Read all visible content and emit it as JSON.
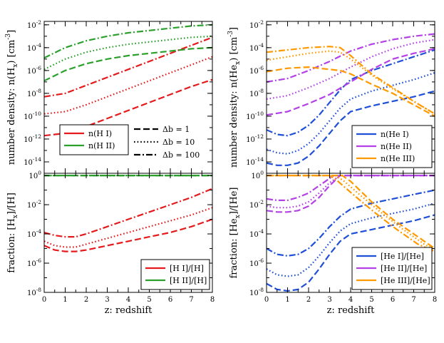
{
  "chart_data": [
    {
      "type": "line",
      "panel": "top-left",
      "ylabel": "number density: n(H_x) [cm^-3]",
      "xlim": [
        0,
        8
      ],
      "ylim_log10": [
        -15,
        -1.7
      ],
      "y_ticks": [
        "10^-14",
        "10^-12",
        "10^-10",
        "10^-8",
        "10^-6",
        "10^-4",
        "10^-2"
      ],
      "legend": [
        {
          "label": "n(H I)",
          "color": "#e41a1c"
        },
        {
          "label": "n(H II)",
          "color": "#2ca02c"
        }
      ],
      "style_legend": [
        {
          "label": "Δb = 1",
          "dash": "dashed"
        },
        {
          "label": "Δb = 10",
          "dash": "dotted"
        },
        {
          "label": "Δb = 100",
          "dash": "dashdot"
        }
      ],
      "series": [
        {
          "name": "n(H I) Δb=1",
          "color": "#e41a1c",
          "dash": "dashed",
          "x": [
            0,
            1,
            2,
            3,
            4,
            5,
            6,
            7,
            8
          ],
          "y": [
            -11.7,
            -11.5,
            -10.9,
            -10.2,
            -9.5,
            -8.8,
            -8.1,
            -7.4,
            -6.8
          ]
        },
        {
          "name": "n(H I) Δb=10",
          "color": "#e41a1c",
          "dash": "dotted",
          "x": [
            0,
            1,
            2,
            3,
            4,
            5,
            6,
            7,
            8
          ],
          "y": [
            -9.8,
            -9.6,
            -9.0,
            -8.3,
            -7.6,
            -6.9,
            -6.2,
            -5.5,
            -4.8
          ]
        },
        {
          "name": "n(H I) Δb=100",
          "color": "#e41a1c",
          "dash": "dashdot",
          "x": [
            0,
            1,
            2,
            3,
            4,
            5,
            6,
            7,
            8
          ],
          "y": [
            -8.3,
            -8.0,
            -7.3,
            -6.6,
            -5.9,
            -5.2,
            -4.5,
            -3.8,
            -3.1
          ]
        },
        {
          "name": "n(H II) Δb=1",
          "color": "#2ca02c",
          "dash": "dashed",
          "x": [
            0,
            1,
            2,
            3,
            4,
            5,
            6,
            7,
            8
          ],
          "y": [
            -6.9,
            -6.0,
            -5.4,
            -5.0,
            -4.7,
            -4.5,
            -4.3,
            -4.1,
            -4.0
          ]
        },
        {
          "name": "n(H II) Δb=10",
          "color": "#2ca02c",
          "dash": "dotted",
          "x": [
            0,
            1,
            2,
            3,
            4,
            5,
            6,
            7,
            8
          ],
          "y": [
            -5.9,
            -5.0,
            -4.4,
            -4.0,
            -3.7,
            -3.5,
            -3.3,
            -3.1,
            -3.0
          ]
        },
        {
          "name": "n(H II) Δb=100",
          "color": "#2ca02c",
          "dash": "dashdot",
          "x": [
            0,
            1,
            2,
            3,
            4,
            5,
            6,
            7,
            8
          ],
          "y": [
            -4.9,
            -4.0,
            -3.4,
            -3.0,
            -2.7,
            -2.5,
            -2.3,
            -2.1,
            -2.0
          ]
        }
      ]
    },
    {
      "type": "line",
      "panel": "top-right",
      "ylabel": "number density: n(He_x) [cm^-3]",
      "xlim": [
        0,
        8
      ],
      "ylim_log10": [
        -15,
        -1.7
      ],
      "y_ticks": [
        "10^-14",
        "10^-12",
        "10^-10",
        "10^-8",
        "10^-6",
        "10^-4",
        "10^-2"
      ],
      "legend": [
        {
          "label": "n(He I)",
          "color": "#1f4fd6"
        },
        {
          "label": "n(He II)",
          "color": "#b341e6"
        },
        {
          "label": "n(He III)",
          "color": "#ff9900"
        }
      ],
      "series": [
        {
          "name": "n(He I) Δb=1",
          "color": "#1f4fd6",
          "dash": "dashed",
          "x": [
            0,
            0.5,
            1,
            1.5,
            2,
            2.5,
            3,
            3.5,
            4,
            5,
            6,
            7,
            8
          ],
          "y": [
            -14.1,
            -14.3,
            -14.3,
            -14.1,
            -13.5,
            -12.6,
            -11.5,
            -10.4,
            -9.6,
            -9.1,
            -8.7,
            -8.3,
            -7.8
          ]
        },
        {
          "name": "n(He I) Δb=10",
          "color": "#1f4fd6",
          "dash": "dotted",
          "x": [
            0,
            0.5,
            1,
            1.5,
            2,
            2.5,
            3,
            3.5,
            4,
            5,
            6,
            7,
            8
          ],
          "y": [
            -12.9,
            -13.2,
            -13.3,
            -13.0,
            -12.4,
            -11.5,
            -10.4,
            -9.3,
            -8.5,
            -7.8,
            -7.3,
            -6.8,
            -6.2
          ]
        },
        {
          "name": "n(He I) Δb=100",
          "color": "#1f4fd6",
          "dash": "dashdot",
          "x": [
            0,
            0.5,
            1,
            1.5,
            2,
            2.5,
            3,
            3.5,
            4,
            5,
            6,
            7,
            8
          ],
          "y": [
            -11.2,
            -11.6,
            -11.7,
            -11.4,
            -10.8,
            -9.9,
            -8.8,
            -7.7,
            -6.8,
            -6.0,
            -5.4,
            -4.8,
            -4.2
          ]
        },
        {
          "name": "n(He II) Δb=1",
          "color": "#b341e6",
          "dash": "dashed",
          "x": [
            0,
            1,
            2,
            3,
            4,
            5,
            6,
            7,
            8
          ],
          "y": [
            -9.9,
            -9.6,
            -8.9,
            -8.1,
            -7.0,
            -5.9,
            -5.0,
            -4.5,
            -4.1
          ]
        },
        {
          "name": "n(He II) Δb=10",
          "color": "#b341e6",
          "dash": "dotted",
          "x": [
            0,
            1,
            2,
            3,
            4,
            5,
            6,
            7,
            8
          ],
          "y": [
            -8.5,
            -8.2,
            -7.5,
            -6.7,
            -5.7,
            -4.8,
            -4.1,
            -3.6,
            -3.3
          ]
        },
        {
          "name": "n(He II) Δb=100",
          "color": "#b341e6",
          "dash": "dashdot",
          "x": [
            0,
            1,
            2,
            3,
            4,
            5,
            6,
            7,
            8
          ],
          "y": [
            -7.0,
            -6.7,
            -6.0,
            -5.2,
            -4.3,
            -3.7,
            -3.3,
            -3.0,
            -2.8
          ]
        },
        {
          "name": "n(He III) Δb=1",
          "color": "#ff9900",
          "dash": "dashed",
          "x": [
            0,
            1,
            2,
            3,
            3.5,
            4,
            5,
            6,
            7,
            8
          ],
          "y": [
            -6.1,
            -5.8,
            -5.7,
            -5.9,
            -6.0,
            -6.3,
            -7.2,
            -8.0,
            -9.0,
            -10.0
          ]
        },
        {
          "name": "n(He III) Δb=10",
          "color": "#ff9900",
          "dash": "dotted",
          "x": [
            0,
            1,
            2,
            3,
            3.5,
            4,
            5,
            6,
            7,
            8
          ],
          "y": [
            -5.1,
            -4.8,
            -4.5,
            -4.3,
            -4.4,
            -5.0,
            -6.4,
            -7.6,
            -8.7,
            -9.8
          ]
        },
        {
          "name": "n(He III) Δb=100",
          "color": "#ff9900",
          "dash": "dashdot",
          "x": [
            0,
            1,
            2,
            3,
            3.5,
            4,
            5,
            6,
            7,
            8
          ],
          "y": [
            -4.4,
            -4.2,
            -4.0,
            -3.9,
            -4.0,
            -4.7,
            -6.3,
            -7.5,
            -8.7,
            -9.8
          ]
        }
      ]
    },
    {
      "type": "line",
      "panel": "bottom-left",
      "xlabel": "z: redshift",
      "ylabel": "fraction: [H_x]/[H]",
      "xlim": [
        0,
        8
      ],
      "ylim_log10": [
        -8,
        0.15
      ],
      "x_ticks": [
        "0",
        "1",
        "2",
        "3",
        "4",
        "5",
        "6",
        "7",
        "8"
      ],
      "y_ticks": [
        "10^-8",
        "10^-6",
        "10^-4",
        "10^-2",
        "10^0"
      ],
      "legend": [
        {
          "label": "[H I]/[H]",
          "color": "#e41a1c"
        },
        {
          "label": "[H II]/[H]",
          "color": "#2ca02c"
        }
      ],
      "series": [
        {
          "name": "[H I]/[H] Δb=1",
          "color": "#e41a1c",
          "dash": "dashed",
          "x": [
            0,
            0.5,
            1,
            1.5,
            2,
            3,
            4,
            5,
            6,
            7,
            8
          ],
          "y": [
            -4.8,
            -5.1,
            -5.2,
            -5.2,
            -5.1,
            -4.8,
            -4.5,
            -4.2,
            -3.9,
            -3.5,
            -3.0
          ]
        },
        {
          "name": "[H I]/[H] Δb=10",
          "color": "#e41a1c",
          "dash": "dotted",
          "x": [
            0,
            0.5,
            1,
            1.5,
            2,
            3,
            4,
            5,
            6,
            7,
            8
          ],
          "y": [
            -4.5,
            -4.8,
            -4.9,
            -4.9,
            -4.7,
            -4.3,
            -3.9,
            -3.5,
            -3.1,
            -2.7,
            -2.2
          ]
        },
        {
          "name": "[H I]/[H] Δb=100",
          "color": "#e41a1c",
          "dash": "dashdot",
          "x": [
            0,
            0.5,
            1,
            1.5,
            2,
            3,
            4,
            5,
            6,
            7,
            8
          ],
          "y": [
            -3.9,
            -4.1,
            -4.2,
            -4.2,
            -4.0,
            -3.5,
            -3.0,
            -2.5,
            -2.0,
            -1.5,
            -0.9
          ]
        },
        {
          "name": "[H II]/[H] Δb=1",
          "color": "#2ca02c",
          "dash": "dashed",
          "x": [
            0,
            8
          ],
          "y": [
            0,
            0
          ]
        },
        {
          "name": "[H II]/[H] Δb=10",
          "color": "#2ca02c",
          "dash": "dotted",
          "x": [
            0,
            8
          ],
          "y": [
            0,
            0
          ]
        },
        {
          "name": "[H II]/[H] Δb=100",
          "color": "#2ca02c",
          "dash": "dashdot",
          "x": [
            0,
            8
          ],
          "y": [
            0,
            0
          ]
        }
      ]
    },
    {
      "type": "line",
      "panel": "bottom-right",
      "xlabel": "z: redshift",
      "ylabel": "fraction: [He_x]/[He]",
      "xlim": [
        0,
        8
      ],
      "ylim_log10": [
        -8,
        0.15
      ],
      "x_ticks": [
        "0",
        "1",
        "2",
        "3",
        "4",
        "5",
        "6",
        "7",
        "8"
      ],
      "y_ticks": [
        "10^-8",
        "10^-6",
        "10^-4",
        "10^-2",
        "10^0"
      ],
      "legend": [
        {
          "label": "[He I]/[He]",
          "color": "#1f4fd6"
        },
        {
          "label": "[He II]/[He]",
          "color": "#b341e6"
        },
        {
          "label": "[He III]/[He]",
          "color": "#ff9900"
        }
      ],
      "series": [
        {
          "name": "[He I]/[He] Δb=1",
          "color": "#1f4fd6",
          "dash": "dashed",
          "x": [
            0,
            0.5,
            1,
            1.5,
            2,
            2.5,
            3,
            3.5,
            4,
            5,
            6,
            7,
            8
          ],
          "y": [
            -7.4,
            -7.8,
            -7.9,
            -7.8,
            -7.3,
            -6.4,
            -5.4,
            -4.5,
            -4.0,
            -3.7,
            -3.4,
            -3.1,
            -2.7
          ]
        },
        {
          "name": "[He I]/[He] Δb=10",
          "color": "#1f4fd6",
          "dash": "dotted",
          "x": [
            0,
            0.5,
            1,
            1.5,
            2,
            2.5,
            3,
            3.5,
            4,
            5,
            6,
            7,
            8
          ],
          "y": [
            -6.4,
            -6.8,
            -6.9,
            -6.8,
            -6.3,
            -5.5,
            -4.6,
            -3.8,
            -3.3,
            -2.9,
            -2.6,
            -2.3,
            -1.9
          ]
        },
        {
          "name": "[He I]/[He] Δb=100",
          "color": "#1f4fd6",
          "dash": "dashdot",
          "x": [
            0,
            0.5,
            1,
            1.5,
            2,
            2.5,
            3,
            3.5,
            4,
            5,
            6,
            7,
            8
          ],
          "y": [
            -5.0,
            -5.4,
            -5.5,
            -5.4,
            -5.0,
            -4.3,
            -3.5,
            -2.8,
            -2.3,
            -1.9,
            -1.6,
            -1.3,
            -1.0
          ]
        },
        {
          "name": "[He II]/[He] Δb=1",
          "color": "#b341e6",
          "dash": "dashed",
          "x": [
            0,
            0.5,
            1,
            1.5,
            2,
            2.5,
            3,
            3.5,
            8
          ],
          "y": [
            -2.4,
            -2.5,
            -2.5,
            -2.4,
            -2.1,
            -1.5,
            -0.7,
            0,
            0
          ]
        },
        {
          "name": "[He II]/[He] Δb=10",
          "color": "#b341e6",
          "dash": "dotted",
          "x": [
            0,
            0.5,
            1,
            1.5,
            2,
            2.5,
            3,
            3.5,
            8
          ],
          "y": [
            -2.1,
            -2.2,
            -2.2,
            -2.1,
            -1.8,
            -1.2,
            -0.5,
            0,
            0
          ]
        },
        {
          "name": "[He II]/[He] Δb=100",
          "color": "#b341e6",
          "dash": "dashdot",
          "x": [
            0,
            0.5,
            1,
            1.5,
            2,
            2.5,
            3,
            3.2,
            8
          ],
          "y": [
            -1.6,
            -1.7,
            -1.7,
            -1.5,
            -1.2,
            -0.7,
            -0.2,
            0,
            0
          ]
        },
        {
          "name": "[He III]/[He] Δb=1",
          "color": "#ff9900",
          "dash": "dashed",
          "x": [
            0,
            3.6,
            4,
            5,
            6,
            7,
            8
          ],
          "y": [
            0,
            0,
            -0.4,
            -1.8,
            -3.0,
            -4.0,
            -5.0
          ]
        },
        {
          "name": "[He III]/[He] Δb=10",
          "color": "#ff9900",
          "dash": "dotted",
          "x": [
            0,
            3.3,
            3.7,
            4.5,
            5.5,
            6.5,
            7.5,
            8
          ],
          "y": [
            0,
            0,
            -0.4,
            -1.4,
            -2.6,
            -3.7,
            -4.7,
            -5.1
          ]
        },
        {
          "name": "[He III]/[He] Δb=100",
          "color": "#ff9900",
          "dash": "dashdot",
          "x": [
            0,
            3.0,
            3.4,
            4.2,
            5.2,
            6.2,
            7.2,
            8
          ],
          "y": [
            0,
            0,
            -0.4,
            -1.4,
            -2.6,
            -3.7,
            -4.7,
            -5.2
          ]
        }
      ]
    }
  ]
}
